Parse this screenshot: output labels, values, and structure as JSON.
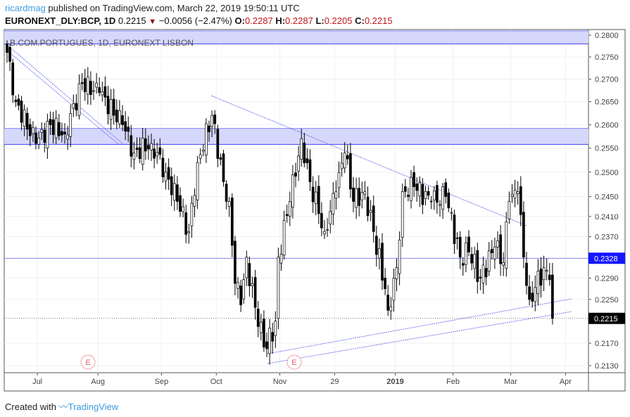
{
  "header": {
    "user": "ricardmag",
    "published": "published on TradingView.com, March 22, 2019 19:50:11 UTC",
    "symbol": "EURONEXT_DLY:BCP, 1D",
    "last": "0.2215",
    "change": "−0.0056 (−2.47%)",
    "o_label": "O:",
    "o": "0.2287",
    "h_label": "H:",
    "h": "0.2287",
    "l_label": "L:",
    "l": "0.2205",
    "c_label": "C:",
    "c": "0.2215"
  },
  "footer": {
    "created": "Created with",
    "brand": "TradingView"
  },
  "colors": {
    "accent": "#3d9be0",
    "zone": "#d6d8fb",
    "line": "#3f3ff5",
    "down": "#000000",
    "up": "#ffffff"
  },
  "chart_data": {
    "type": "candlestick",
    "title": "B.COM.PORTUGUES, 1D, EURONEXT LISBON",
    "scale": "log",
    "ylim": [
      0.2123,
      0.2812
    ],
    "y_ticks": [
      "0.2800",
      "0.2750",
      "0.2700",
      "0.2650",
      "0.2600",
      "0.2550",
      "0.2500",
      "0.2450",
      "0.2410",
      "0.2370",
      "0.2290",
      "0.2250",
      "0.2170",
      "0.2130"
    ],
    "x_ticks": [
      {
        "label": "Jul",
        "day": 11
      },
      {
        "label": "Aug",
        "day": 32
      },
      {
        "label": "Sep",
        "day": 54
      },
      {
        "label": "Oct",
        "day": 73
      },
      {
        "label": "Nov",
        "day": 95
      },
      {
        "label": "29",
        "day": 114
      },
      {
        "label": "2019",
        "day": 135
      },
      {
        "label": "Feb",
        "day": 155
      },
      {
        "label": "Mar",
        "day": 175
      },
      {
        "label": "Apr",
        "day": 194
      }
    ],
    "days": 198,
    "close_anchors": [
      [
        0,
        0.276
      ],
      [
        3,
        0.265
      ],
      [
        10,
        0.256
      ],
      [
        15,
        0.26
      ],
      [
        20,
        0.258
      ],
      [
        26,
        0.269
      ],
      [
        32,
        0.267
      ],
      [
        40,
        0.26
      ],
      [
        44,
        0.254
      ],
      [
        50,
        0.256
      ],
      [
        55,
        0.25
      ],
      [
        59,
        0.244
      ],
      [
        63,
        0.238
      ],
      [
        66,
        0.252
      ],
      [
        71,
        0.262
      ],
      [
        75,
        0.248
      ],
      [
        77,
        0.244
      ],
      [
        79,
        0.228
      ],
      [
        81,
        0.224
      ],
      [
        83,
        0.233
      ],
      [
        87,
        0.22
      ],
      [
        90,
        0.216
      ],
      [
        93,
        0.221
      ],
      [
        94,
        0.233
      ],
      [
        98,
        0.244
      ],
      [
        102,
        0.257
      ],
      [
        105,
        0.248
      ],
      [
        110,
        0.238
      ],
      [
        114,
        0.246
      ],
      [
        117,
        0.254
      ],
      [
        120,
        0.244
      ],
      [
        124,
        0.246
      ],
      [
        127,
        0.238
      ],
      [
        131,
        0.227
      ],
      [
        132,
        0.223
      ],
      [
        135,
        0.231
      ],
      [
        137,
        0.246
      ],
      [
        141,
        0.247
      ],
      [
        147,
        0.244
      ],
      [
        152,
        0.245
      ],
      [
        157,
        0.233
      ],
      [
        160,
        0.234
      ],
      [
        164,
        0.229
      ],
      [
        169,
        0.235
      ],
      [
        172,
        0.232
      ],
      [
        174,
        0.244
      ],
      [
        177,
        0.246
      ],
      [
        179,
        0.233
      ],
      [
        181,
        0.225
      ],
      [
        186,
        0.231
      ],
      [
        188,
        0.2287
      ],
      [
        189,
        0.2215
      ]
    ],
    "zones": [
      [
        0.278,
        0.281
      ],
      [
        0.2558,
        0.2592
      ]
    ],
    "hline": {
      "price": 0.2328,
      "label": "0.2328"
    },
    "last_price": {
      "price": 0.2215,
      "label": "0.2215"
    },
    "event_marker": "E"
  }
}
